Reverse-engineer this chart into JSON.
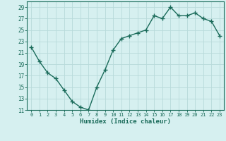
{
  "x": [
    0,
    1,
    2,
    3,
    4,
    5,
    6,
    7,
    8,
    9,
    10,
    11,
    12,
    13,
    14,
    15,
    16,
    17,
    18,
    19,
    20,
    21,
    22,
    23
  ],
  "y": [
    22,
    19.5,
    17.5,
    16.5,
    14.5,
    12.5,
    11.5,
    11,
    15,
    18,
    21.5,
    23.5,
    24,
    24.5,
    25,
    27.5,
    27,
    29,
    27.5,
    27.5,
    28,
    27,
    26.5,
    24
  ],
  "line_color": "#1a6b5a",
  "bg_color": "#d6f0f0",
  "grid_color": "#b8dada",
  "xlabel": "Humidex (Indice chaleur)",
  "xlim": [
    -0.5,
    23.5
  ],
  "ylim": [
    11,
    30
  ],
  "yticks": [
    11,
    13,
    15,
    17,
    19,
    21,
    23,
    25,
    27,
    29
  ],
  "xticks": [
    0,
    1,
    2,
    3,
    4,
    5,
    6,
    7,
    8,
    9,
    10,
    11,
    12,
    13,
    14,
    15,
    16,
    17,
    18,
    19,
    20,
    21,
    22,
    23
  ],
  "xtick_labels": [
    "0",
    "1",
    "2",
    "3",
    "4",
    "5",
    "6",
    "7",
    "8",
    "9",
    "10",
    "11",
    "12",
    "13",
    "14",
    "15",
    "16",
    "17",
    "18",
    "19",
    "20",
    "21",
    "22",
    "23"
  ],
  "marker": "+",
  "markersize": 4,
  "linewidth": 1.0
}
